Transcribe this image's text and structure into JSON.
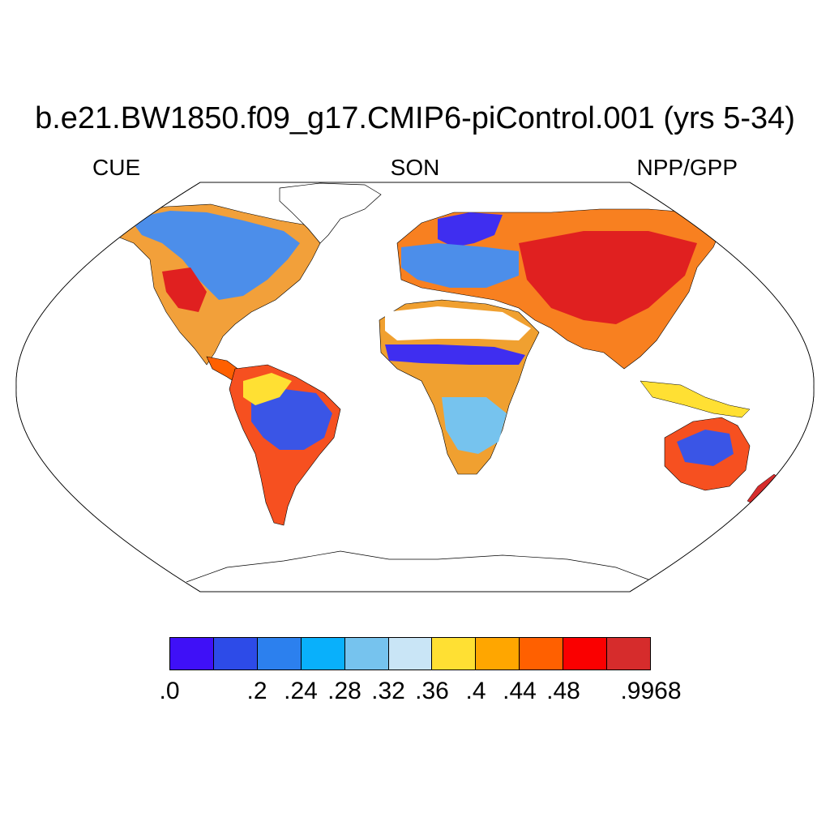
{
  "figure": {
    "title": "b.e21.BW1850.f09_g17.CMIP6-piControl.001 (yrs 5-34)",
    "left_label": "CUE",
    "center_label": "SON",
    "right_label": "NPP/GPP"
  },
  "colorbar": {
    "colors": [
      "#3f10f7",
      "#2d4be8",
      "#2c80ee",
      "#09b0fb",
      "#76c3ee",
      "#c9e5f6",
      "#ffe033",
      "#ffa600",
      "#ff6000",
      "#fa0000",
      "#d62c2c"
    ],
    "tick_labels": [
      ".0",
      "",
      ".2",
      ".24",
      ".28",
      ".32",
      ".36",
      ".4",
      ".44",
      ".48",
      "",
      ".9968"
    ]
  },
  "map": {
    "projection": "Robinson",
    "field": "CUE",
    "missing_color": "#ffffff",
    "coastline_color": "#000000"
  }
}
